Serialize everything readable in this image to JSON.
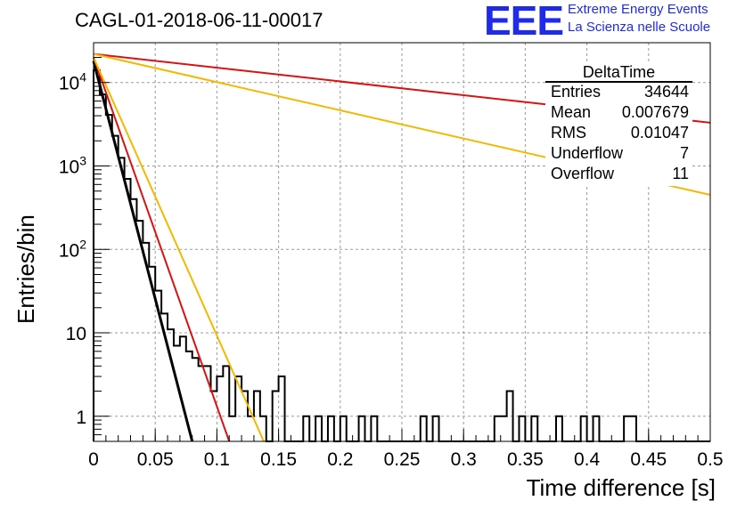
{
  "title": "CAGL-01-2018-06-11-00017",
  "logo": {
    "mark": "EEE",
    "line1": "Extreme Energy Events",
    "line2": "La Scienza nelle Scuole",
    "color": "#1f2be6"
  },
  "stats": {
    "title": "DeltaTime",
    "rows": [
      {
        "key": "Entries",
        "value": "34644"
      },
      {
        "key": "Mean",
        "value": "0.007679"
      },
      {
        "key": "RMS",
        "value": "0.01047"
      },
      {
        "key": "Underflow",
        "value": "7"
      },
      {
        "key": "Overflow",
        "value": "11"
      }
    ]
  },
  "chart_data": {
    "type": "step-histogram",
    "title": "CAGL-01-2018-06-11-00017",
    "xlabel": "Time difference [s]",
    "ylabel": "Entries/bin",
    "xlim": [
      0,
      0.5
    ],
    "ylim": [
      0.5,
      30000
    ],
    "yscale": "log",
    "grid": true,
    "xticks": [
      "0",
      "0.05",
      "0.1",
      "0.15",
      "0.2",
      "0.25",
      "0.3",
      "0.35",
      "0.4",
      "0.45",
      "0.5"
    ],
    "yticks": [
      "1",
      "10",
      "10^2",
      "10^3",
      "10^4"
    ],
    "bin_width": 0.005,
    "histogram": {
      "color": "#000000",
      "bins": [
        [
          0.0,
          14000
        ],
        [
          0.005,
          7200
        ],
        [
          0.01,
          4100
        ],
        [
          0.015,
          2300
        ],
        [
          0.02,
          1250
        ],
        [
          0.025,
          700
        ],
        [
          0.03,
          400
        ],
        [
          0.035,
          220
        ],
        [
          0.04,
          120
        ],
        [
          0.045,
          62
        ],
        [
          0.05,
          32
        ],
        [
          0.055,
          17
        ],
        [
          0.06,
          11
        ],
        [
          0.065,
          7
        ],
        [
          0.07,
          9
        ],
        [
          0.075,
          6
        ],
        [
          0.08,
          5
        ],
        [
          0.085,
          4
        ],
        [
          0.09,
          4
        ],
        [
          0.095,
          2
        ],
        [
          0.1,
          3
        ],
        [
          0.105,
          4
        ],
        [
          0.11,
          1
        ],
        [
          0.115,
          3
        ],
        [
          0.12,
          2
        ],
        [
          0.125,
          1
        ],
        [
          0.13,
          2
        ],
        [
          0.135,
          1
        ],
        [
          0.14,
          0
        ],
        [
          0.145,
          2
        ],
        [
          0.15,
          3
        ],
        [
          0.155,
          0
        ],
        [
          0.17,
          1
        ],
        [
          0.18,
          1
        ],
        [
          0.19,
          1
        ],
        [
          0.2,
          1
        ],
        [
          0.215,
          1
        ],
        [
          0.225,
          1
        ],
        [
          0.265,
          1
        ],
        [
          0.275,
          1
        ],
        [
          0.325,
          1
        ],
        [
          0.33,
          1
        ],
        [
          0.335,
          2
        ],
        [
          0.345,
          1
        ],
        [
          0.355,
          1
        ],
        [
          0.375,
          1
        ],
        [
          0.395,
          1
        ],
        [
          0.405,
          1
        ],
        [
          0.43,
          1
        ],
        [
          0.435,
          1
        ]
      ]
    },
    "series": [
      {
        "color": "#000000",
        "x0": 0.0,
        "y0": 18000,
        "x1": 0.08,
        "y1": 0.5
      },
      {
        "color": "#dd1111",
        "x0": 0.0,
        "y0": 20000,
        "x1": 0.11,
        "y1": 0.5
      },
      {
        "color": "#f5b800",
        "x0": 0.0,
        "y0": 20000,
        "x1": 0.138,
        "y1": 0.5
      },
      {
        "color": "#dd1111",
        "x0": 0.0,
        "y0": 22000,
        "x1": 0.5,
        "y1": 3300
      },
      {
        "color": "#f5b800",
        "x0": 0.0,
        "y0": 22000,
        "x1": 0.5,
        "y1": 450
      }
    ]
  }
}
